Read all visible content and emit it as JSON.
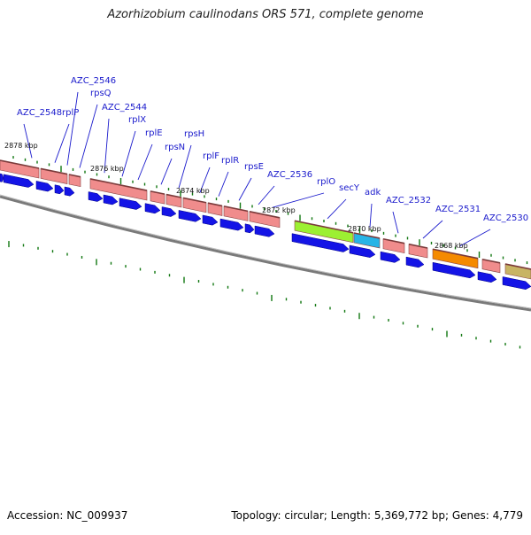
{
  "header": {
    "title": "Azorhizobium caulinodans ORS 571, complete genome"
  },
  "footer": {
    "accession": "Accession: NC_009937",
    "summary": "Topology: circular; Length: 5,369,772 bp; Genes: 4,779"
  },
  "colors": {
    "rrna_segment": "#f08c8c",
    "rrna_border": "#8c4646",
    "blue_arrow": "#1414e6",
    "label": "#1a1acc",
    "leader": "#1a1acc",
    "tick": "#117711",
    "backbone": "#808080",
    "green_segment": "#9cf032",
    "cyan_segment": "#28b4e6",
    "orange_segment": "#f58a00",
    "olive_segment": "#c8b464"
  },
  "map": {
    "kbp_labels": [
      "2878 kbp",
      "2876 kbp",
      "2874 kbp",
      "2872 kbp",
      "2870 kbp",
      "2868 kbp"
    ],
    "gene_labels": [
      "AZC_2548",
      "rplP",
      "AZC_2546",
      "rpsQ",
      "AZC_2544",
      "rplX",
      "rplE",
      "rpsN",
      "rpsH",
      "rplF",
      "rplR",
      "rpsE",
      "AZC_2536",
      "rplO",
      "secY",
      "adk",
      "AZC_2532",
      "AZC_2531",
      "AZC_2530"
    ]
  }
}
